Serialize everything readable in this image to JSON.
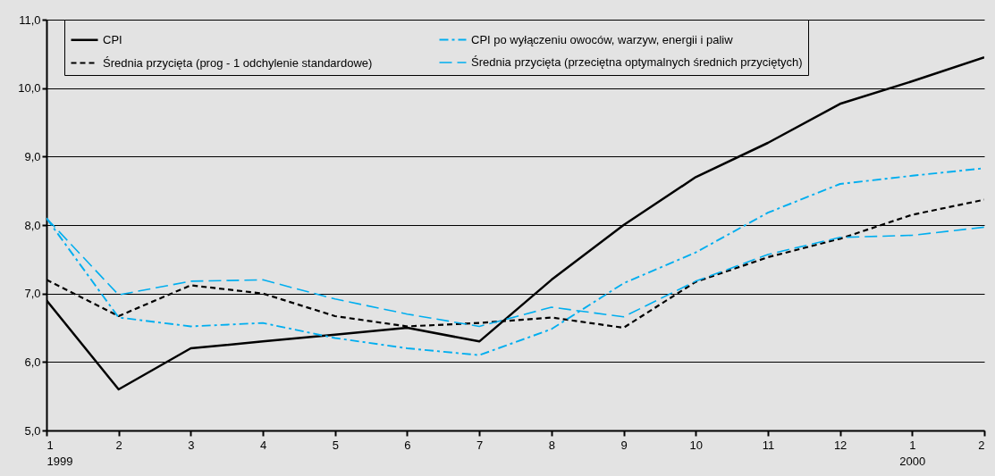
{
  "chart_data": {
    "type": "line",
    "categories": [
      "1\n1999",
      "2",
      "3",
      "4",
      "5",
      "6",
      "7",
      "8",
      "9",
      "10",
      "11",
      "12",
      "1\n2000",
      "2"
    ],
    "series": [
      {
        "name": "CPI",
        "color": "#000000",
        "line_style": "solid",
        "values": [
          6.9,
          5.6,
          6.2,
          6.3,
          6.4,
          6.5,
          6.3,
          7.2,
          8.0,
          8.7,
          9.2,
          9.77,
          10.1,
          10.45
        ]
      },
      {
        "name": "Średnia przycięta (prog - 1 odchylenie standardowe)",
        "color": "#000000",
        "line_style": "dashed",
        "values": [
          7.2,
          6.67,
          7.12,
          7.0,
          6.67,
          6.52,
          6.57,
          6.65,
          6.5,
          7.17,
          7.53,
          7.8,
          8.15,
          8.37
        ]
      },
      {
        "name": "CPI po wyłączeniu owoców, warzyw, energii i paliw",
        "color": "#00aeef",
        "line_style": "dashdot",
        "values": [
          8.1,
          6.65,
          6.52,
          6.57,
          6.35,
          6.2,
          6.1,
          6.48,
          7.15,
          7.6,
          8.18,
          8.6,
          8.72,
          8.83
        ]
      },
      {
        "name": "Średnia przycięta (przeciętna optymalnych średnich przyciętych)",
        "color": "#00aeef",
        "line_style": "longdash",
        "values": [
          8.1,
          6.98,
          7.18,
          7.2,
          6.92,
          6.7,
          6.52,
          6.8,
          6.66,
          7.18,
          7.57,
          7.82,
          7.85,
          7.97
        ]
      }
    ],
    "ylim": [
      5,
      11
    ],
    "yticks": [
      {
        "value": 5,
        "label": "5,0"
      },
      {
        "value": 6,
        "label": "6,0"
      },
      {
        "value": 7,
        "label": "7,0"
      },
      {
        "value": 8,
        "label": "8,0"
      },
      {
        "value": 9,
        "label": "9,0"
      },
      {
        "value": 10,
        "label": "10,0"
      },
      {
        "value": 11,
        "label": "11,0"
      }
    ],
    "grid": "y",
    "legend": "top",
    "marker": "none"
  }
}
